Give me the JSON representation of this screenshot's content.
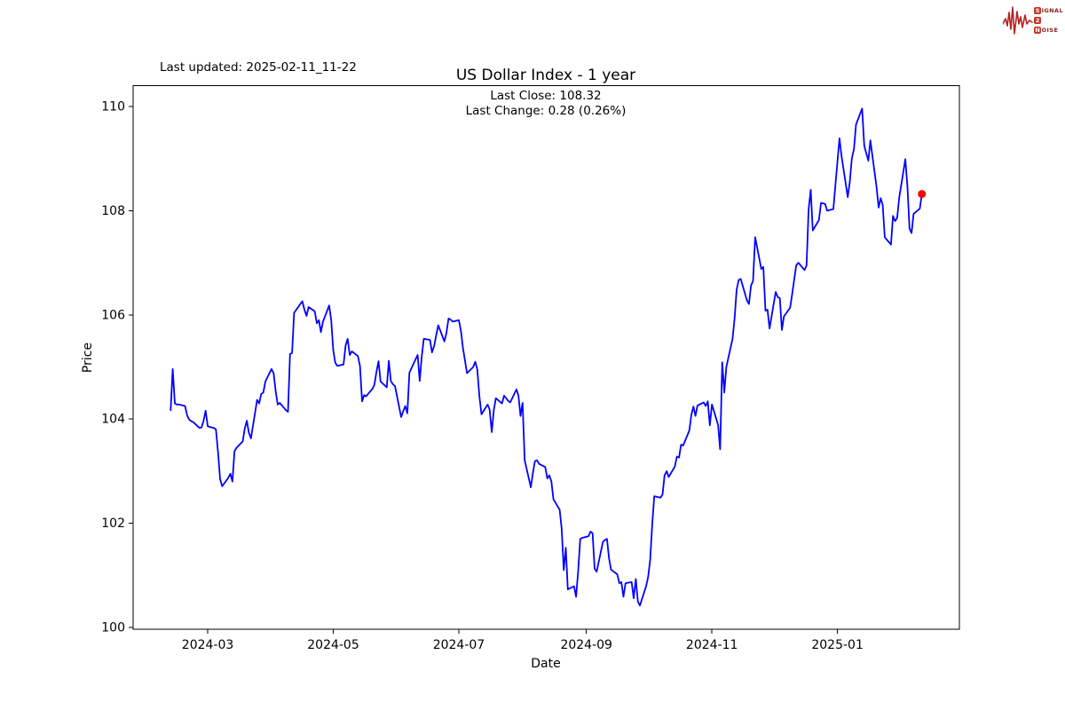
{
  "header": {
    "last_updated": "Last updated: 2025-02-11_11-22"
  },
  "logo": {
    "s": "S",
    "ignal": "IGNAL",
    "two": "2",
    "n": "N",
    "oise": "OISE",
    "wave_color": "#b22222",
    "box_color": "#c0392b",
    "text_color": "#8b1a1a"
  },
  "chart_data": {
    "type": "line",
    "title": "US Dollar Index - 1 year",
    "subtitle_lines": [
      "Last Close: 108.32",
      "Last Change: 0.28 (0.26%)"
    ],
    "last_close": 108.32,
    "last_change": 0.28,
    "last_change_pct": "0.26%",
    "xlabel": "Date",
    "ylabel": "Price",
    "line_color": "#0000ff",
    "last_point_color": "#ff0000",
    "grid": false,
    "legend": "none",
    "ylim": [
      99.94,
      110.44
    ],
    "y_ticks": [
      100,
      102,
      104,
      106,
      108,
      110
    ],
    "x_ticks": [
      {
        "date": "2024-03-01",
        "label": "2024-03"
      },
      {
        "date": "2024-05-01",
        "label": "2024-05"
      },
      {
        "date": "2024-07-01",
        "label": "2024-07"
      },
      {
        "date": "2024-09-01",
        "label": "2024-09"
      },
      {
        "date": "2024-11-01",
        "label": "2024-11"
      },
      {
        "date": "2025-01-01",
        "label": "2025-01"
      }
    ],
    "series": [
      {
        "name": "US Dollar Index",
        "start_date": "2024-02-12",
        "end_date": "2025-02-11",
        "frequency": "business_daily",
        "skip_dates": [
          "2024-07-04",
          "2024-12-25",
          "2025-01-01"
        ],
        "values": [
          104.17,
          104.96,
          104.3,
          104.28,
          104.28,
          104.25,
          104.07,
          103.99,
          103.96,
          103.94,
          103.83,
          103.84,
          103.97,
          104.16,
          103.86,
          103.83,
          103.8,
          103.36,
          102.85,
          102.71,
          102.87,
          102.95,
          102.8,
          103.38,
          103.45,
          103.57,
          103.82,
          103.97,
          103.74,
          103.63,
          104.37,
          104.3,
          104.48,
          104.51,
          104.72,
          104.96,
          104.88,
          104.54,
          104.28,
          104.31,
          104.17,
          104.14,
          105.25,
          105.27,
          106.04,
          106.21,
          106.26,
          106.1,
          105.98,
          106.15,
          106.07,
          105.84,
          105.9,
          105.67,
          105.87,
          106.18,
          105.9,
          105.32,
          105.08,
          105.02,
          105.05,
          105.41,
          105.54,
          105.23,
          105.3,
          105.21,
          105.02,
          104.34,
          104.46,
          104.44,
          104.58,
          104.66,
          104.91,
          105.11,
          104.72,
          104.61,
          105.12,
          104.73,
          104.67,
          104.63,
          104.04,
          104.15,
          104.25,
          104.11,
          104.89,
          105.15,
          105.23,
          104.73,
          105.2,
          105.54,
          105.52,
          105.28,
          105.4,
          105.6,
          105.8,
          105.49,
          105.65,
          105.93,
          105.91,
          105.87,
          105.9,
          105.7,
          105.37,
          104.88,
          105.0,
          105.1,
          104.95,
          104.45,
          104.09,
          104.28,
          104.18,
          103.75,
          104.17,
          104.4,
          104.3,
          104.45,
          104.4,
          104.35,
          104.32,
          104.57,
          104.45,
          104.06,
          104.31,
          103.21,
          102.69,
          102.96,
          103.19,
          103.21,
          103.14,
          103.08,
          102.86,
          102.92,
          102.8,
          102.46,
          102.26,
          101.89,
          101.1,
          101.53,
          100.73,
          100.79,
          100.59,
          101.07,
          101.7,
          101.72,
          101.75,
          101.84,
          101.81,
          101.13,
          101.07,
          101.64,
          101.68,
          101.7,
          101.33,
          101.11,
          101.02,
          100.85,
          100.87,
          100.59,
          100.85,
          100.87,
          100.56,
          100.93,
          100.5,
          100.42,
          100.79,
          100.97,
          101.3,
          101.98,
          102.52,
          102.49,
          102.55,
          102.92,
          103.0,
          102.89,
          103.09,
          103.28,
          103.26,
          103.51,
          103.49,
          103.78,
          104.08,
          104.24,
          104.06,
          104.26,
          104.32,
          104.25,
          104.34,
          103.88,
          104.28,
          103.89,
          103.42,
          105.09,
          104.51,
          105.0,
          105.54,
          105.93,
          106.48,
          106.67,
          106.69,
          106.28,
          106.21,
          106.56,
          106.65,
          107.49,
          106.88,
          106.92,
          106.08,
          106.1,
          105.74,
          106.44,
          106.34,
          106.32,
          105.71,
          105.97,
          106.14,
          106.4,
          106.68,
          106.95,
          107.0,
          106.86,
          106.95,
          108.02,
          108.4,
          107.62,
          107.82,
          108.15,
          108.13,
          108.0,
          108.03,
          108.49,
          109.39,
          109.05,
          108.26,
          108.55,
          109.0,
          109.18,
          109.65,
          109.96,
          109.25,
          109.1,
          108.96,
          109.35,
          108.45,
          108.06,
          108.24,
          108.11,
          107.49,
          107.35,
          107.9,
          107.8,
          107.86,
          108.25,
          108.99,
          108.45,
          107.66,
          107.57,
          107.94,
          108.04,
          108.32
        ]
      }
    ]
  }
}
